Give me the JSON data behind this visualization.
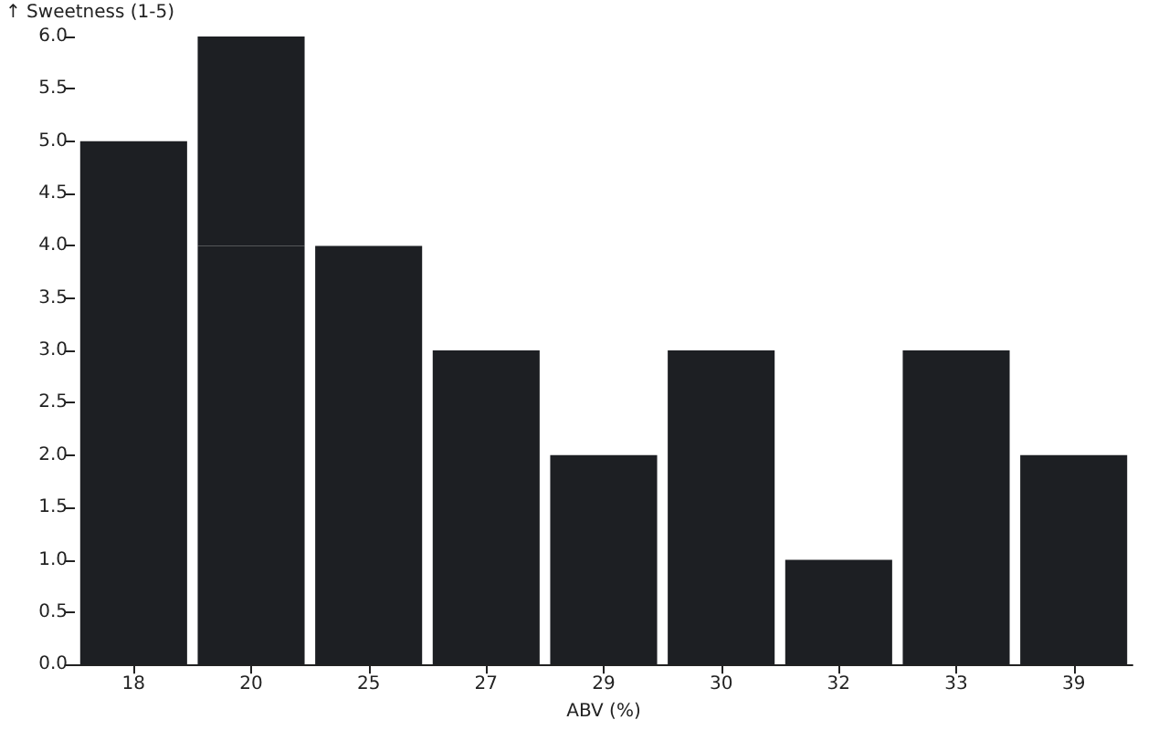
{
  "chart_data": {
    "type": "bar",
    "xlabel": "ABV (%)",
    "ylabel": "↑ Sweetness (1-5)",
    "categories": [
      "18",
      "20",
      "25",
      "27",
      "29",
      "30",
      "32",
      "33",
      "39"
    ],
    "stacked": true,
    "series": [
      {
        "color": "#1d1f23",
        "values": [
          5,
          4,
          4,
          3,
          2,
          3,
          1,
          3,
          2
        ]
      },
      {
        "color": "#1d1f23",
        "values": [
          null,
          2,
          null,
          null,
          null,
          null,
          null,
          null,
          null
        ]
      }
    ],
    "ylim": [
      0,
      6
    ],
    "yticks": [
      {
        "value": 0,
        "label": "0.0"
      },
      {
        "value": 0.5,
        "label": "0.5"
      },
      {
        "value": 1,
        "label": "1.0"
      },
      {
        "value": 1.5,
        "label": "1.5"
      },
      {
        "value": 2,
        "label": "2.0"
      },
      {
        "value": 2.5,
        "label": "2.5"
      },
      {
        "value": 3,
        "label": "3.0"
      },
      {
        "value": 3.5,
        "label": "3.5"
      },
      {
        "value": 4,
        "label": "4.0"
      },
      {
        "value": 4.5,
        "label": "4.5"
      },
      {
        "value": 5,
        "label": "5.0"
      },
      {
        "value": 5.5,
        "label": "5.5"
      },
      {
        "value": 6,
        "label": "6.0"
      }
    ],
    "grid": false
  }
}
